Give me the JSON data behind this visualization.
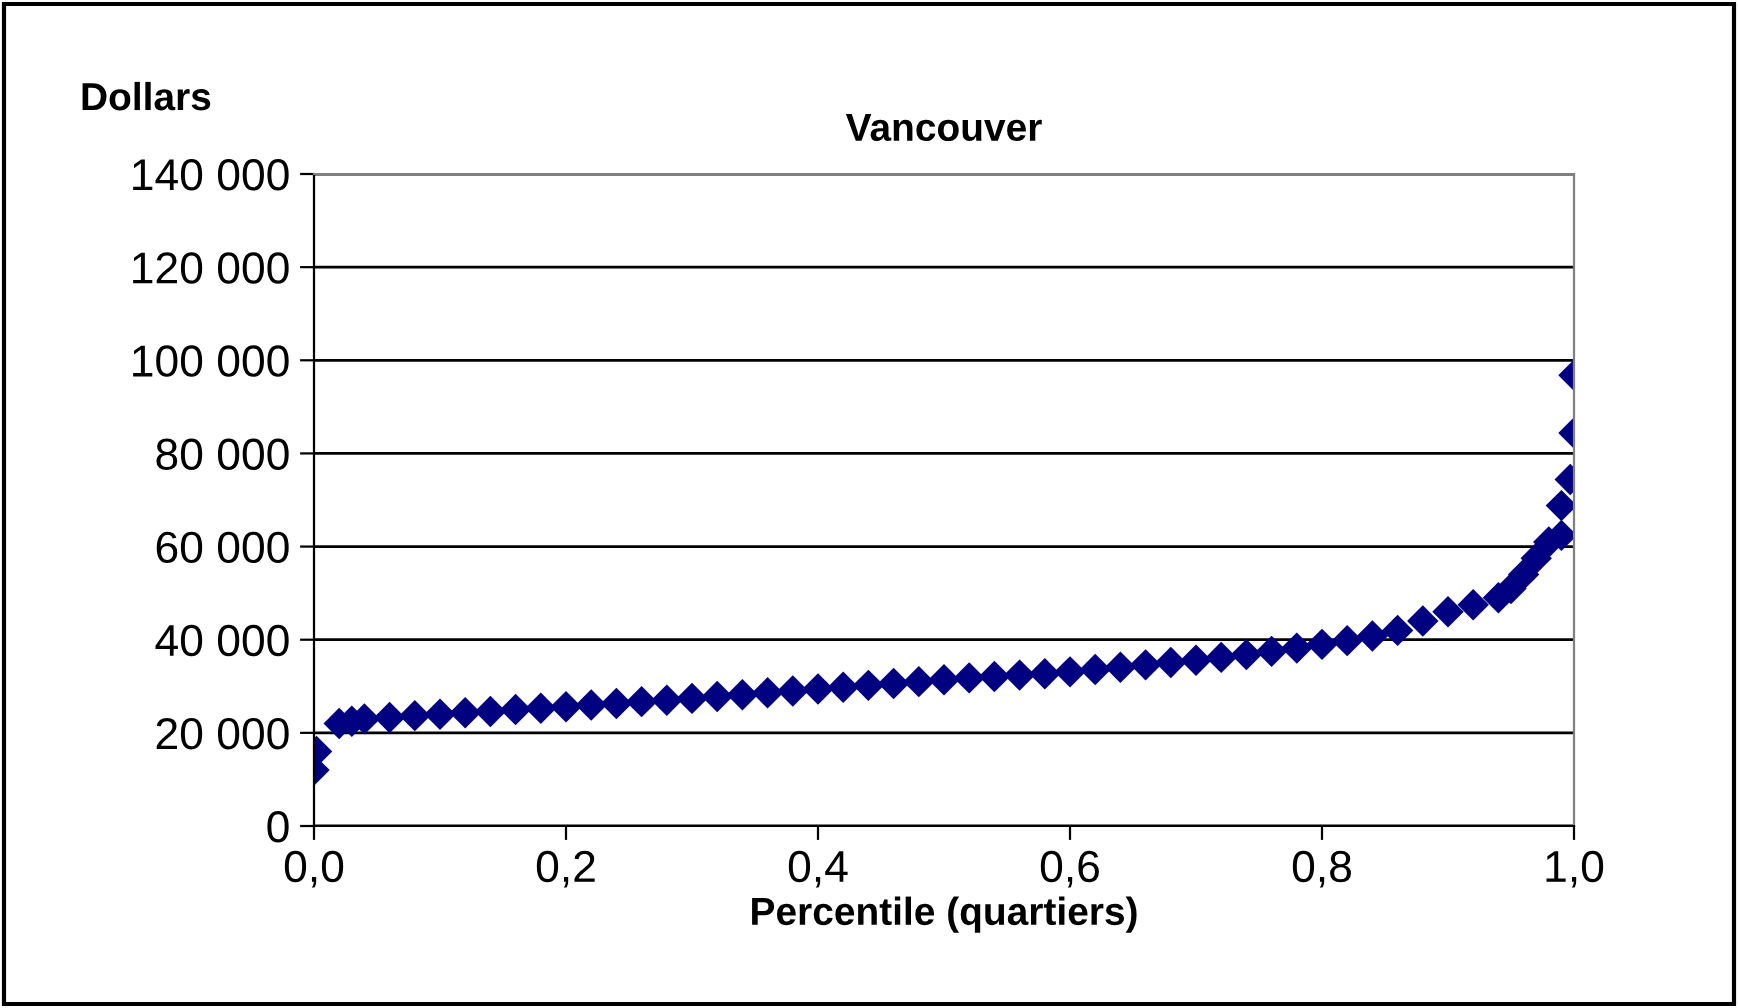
{
  "chart_data": {
    "type": "scatter",
    "title": "Vancouver",
    "ylabel": "Dollars",
    "xlabel": "Percentile (quartiers)",
    "x": [
      0.0,
      0.002,
      0.02,
      0.03,
      0.04,
      0.06,
      0.08,
      0.1,
      0.12,
      0.14,
      0.16,
      0.18,
      0.2,
      0.22,
      0.24,
      0.26,
      0.28,
      0.3,
      0.32,
      0.34,
      0.36,
      0.38,
      0.4,
      0.42,
      0.44,
      0.46,
      0.48,
      0.5,
      0.52,
      0.54,
      0.56,
      0.58,
      0.6,
      0.62,
      0.64,
      0.66,
      0.68,
      0.7,
      0.72,
      0.74,
      0.76,
      0.78,
      0.8,
      0.82,
      0.84,
      0.86,
      0.88,
      0.9,
      0.92,
      0.94,
      0.95,
      0.96,
      0.97,
      0.98,
      0.99,
      0.99,
      0.997,
      1.0,
      1.0
    ],
    "series": [
      {
        "color": "#000080",
        "values": [
          12000,
          16000,
          22000,
          22500,
          23000,
          23300,
          23700,
          24000,
          24300,
          24600,
          25000,
          25300,
          25600,
          26000,
          26300,
          26700,
          27000,
          27400,
          27800,
          28200,
          28600,
          29000,
          29400,
          29800,
          30200,
          30600,
          31000,
          31400,
          31800,
          32100,
          32400,
          32700,
          33100,
          33600,
          34100,
          34600,
          35100,
          35600,
          36200,
          36800,
          37500,
          38200,
          39000,
          39800,
          40800,
          42000,
          44000,
          46000,
          47500,
          49000,
          51000,
          54000,
          57500,
          61000,
          62400,
          68800,
          74400,
          84400,
          96800
        ]
      }
    ],
    "xlim": [
      0,
      1
    ],
    "xticks": [
      {
        "value": 0,
        "label": "0,0"
      },
      {
        "value": 0.2,
        "label": "0,2"
      },
      {
        "value": 0.4,
        "label": "0,4"
      },
      {
        "value": 0.6,
        "label": "0,6"
      },
      {
        "value": 0.8,
        "label": "0,8"
      },
      {
        "value": 1,
        "label": "1,0"
      }
    ],
    "ylim": [
      0,
      140000
    ],
    "yticks": [
      0,
      {
        "value": 20000,
        "label": "20 000"
      },
      {
        "value": 40000,
        "label": "40 000"
      },
      {
        "value": 60000,
        "label": "60 000"
      },
      {
        "value": 80000,
        "label": "80 000"
      },
      {
        "value": 100000,
        "label": "100 000"
      },
      {
        "value": 120000,
        "label": "120 000"
      },
      {
        "value": 140000,
        "label": "140 000"
      }
    ],
    "grid": "y",
    "marker": "diamond",
    "legend": false
  }
}
